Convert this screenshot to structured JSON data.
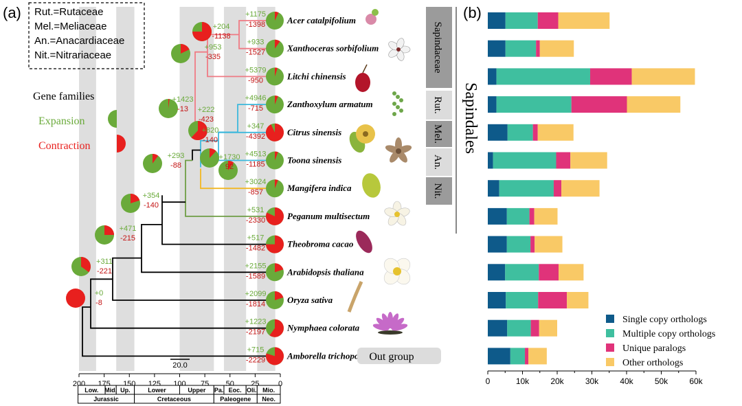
{
  "panel_a": {
    "label": "(a)",
    "abbrev": [
      "Rut.=Rutaceae",
      "Mel.=Meliaceae",
      "An.=Anacardiaceae",
      "Nit.=Nitrariaceae"
    ],
    "gene_families_title": "Gene families",
    "expansion_label": "Expansion",
    "contraction_label": "Contraction",
    "scale_bar_label": "20.0",
    "outgroup_label": "Out group",
    "colors": {
      "expansion": "#6aaa3a",
      "contraction": "#e8201e",
      "sapindaceae_branch": "#ef7b84",
      "rutaceae_branch": "#3db8dc",
      "anacardiaceae_branch": "#f2b724",
      "nitrariaceae_branch": "#6e9d45"
    },
    "species": [
      {
        "name": "Acer catalpifolium",
        "plus": "+1175",
        "minus": "-1398",
        "contraction_frac": 0.07,
        "icon": "acer-flower-icon"
      },
      {
        "name": "Xanthoceras sorbifolium",
        "plus": "+933",
        "minus": "-1527",
        "contraction_frac": 0.1,
        "icon": "xanthoceras-flower-icon"
      },
      {
        "name": "Litchi chinensis",
        "plus": "+5379",
        "minus": "-950",
        "contraction_frac": 0.05,
        "icon": "litchi-fruit-icon"
      },
      {
        "name": "Zanthoxylum armatum",
        "plus": "+4946",
        "minus": "-715",
        "contraction_frac": 0.06,
        "icon": "zanthoxylum-icon"
      },
      {
        "name": "Citrus sinensis",
        "plus": "+347",
        "minus": "-4392",
        "contraction_frac": 0.93,
        "icon": "citrus-fruit-icon"
      },
      {
        "name": "Toona sinensis",
        "plus": "+4513",
        "minus": "-1185",
        "contraction_frac": 0.06,
        "icon": "toona-capsule-icon"
      },
      {
        "name": "Mangifera indica",
        "plus": "+3024",
        "minus": "-857",
        "contraction_frac": 0.06,
        "icon": "mango-fruit-icon"
      },
      {
        "name": "Peganum multisectum",
        "plus": "+531",
        "minus": "-2330",
        "contraction_frac": 0.82,
        "icon": "peganum-flower-icon"
      },
      {
        "name": "Theobroma cacao",
        "plus": "+517",
        "minus": "-1482",
        "contraction_frac": 0.75,
        "icon": "cacao-pod-icon"
      },
      {
        "name": "Arabidopsis thaliana",
        "plus": "+2155",
        "minus": "-1589",
        "contraction_frac": 0.2,
        "icon": "arabidopsis-flower-icon"
      },
      {
        "name": "Oryza sativa",
        "plus": "+2099",
        "minus": "-1814",
        "contraction_frac": 0.2,
        "icon": "rice-panicle-icon"
      },
      {
        "name": "Nymphaea colorata",
        "plus": "+1223",
        "minus": "-2197",
        "contraction_frac": 0.6,
        "icon": "waterlily-icon"
      },
      {
        "name": "Amborella trichopoda",
        "plus": "+715",
        "minus": "-2229",
        "contraction_frac": 0.8,
        "icon": ""
      }
    ],
    "nodes": [
      {
        "plus": "+204",
        "minus": "-1138",
        "contraction_frac": 0.75
      },
      {
        "plus": "+953",
        "minus": "-335",
        "contraction_frac": 0.18
      },
      {
        "plus": "+1423",
        "minus": "-13",
        "contraction_frac": 0.02
      },
      {
        "plus": "+222",
        "minus": "-423",
        "contraction_frac": 0.62
      },
      {
        "plus": "+820",
        "minus": "-140",
        "contraction_frac": 0.12
      },
      {
        "plus": "+1730",
        "minus": "92",
        "contraction_frac": 0.1
      },
      {
        "plus": "+293",
        "minus": "-88",
        "contraction_frac": 0.1
      },
      {
        "plus": "+354",
        "minus": "-140",
        "contraction_frac": 0.2
      },
      {
        "plus": "+471",
        "minus": "-215",
        "contraction_frac": 0.25
      },
      {
        "plus": "+311",
        "minus": "-221",
        "contraction_frac": 0.35
      },
      {
        "plus": "+0",
        "minus": "-8",
        "contraction_frac": 1.0
      }
    ],
    "time_axis": {
      "ticks": [
        "200",
        "175",
        "150",
        "125",
        "100",
        "75",
        "50",
        "25",
        "0"
      ]
    },
    "periods": [
      "Low.",
      "Mid.",
      "Up.",
      "Lower",
      "Upper",
      "Pa.",
      "Eoc.",
      "Oli.",
      "Mio."
    ],
    "eras": [
      "Jurassic",
      "Cretaceous",
      "Paleogene",
      "Neo."
    ],
    "family_labels": [
      "Sapindaceae",
      "Rut.",
      "Mel.",
      "An.",
      "Nit."
    ],
    "order_label": "Sapindales"
  },
  "chart_data": {
    "type": "bar",
    "stacked": true,
    "orientation": "horizontal",
    "title": "(b)",
    "categories": [
      "Acer catalpifolium",
      "Xanthoceras sorbifolium",
      "Litchi chinensis",
      "Zanthoxylum armatum",
      "Citrus sinensis",
      "Toona sinensis",
      "Mangifera indica",
      "Peganum multisectum",
      "Theobroma cacao",
      "Arabidopsis thaliana",
      "Oryza sativa",
      "Nymphaea colorata",
      "Amborella trichopoda"
    ],
    "series": [
      {
        "name": "Single copy orthologs",
        "color": "#0e5a8a",
        "values": [
          5100,
          5100,
          2500,
          2500,
          5700,
          1500,
          3300,
          5500,
          5500,
          5000,
          5200,
          5600,
          6500
        ]
      },
      {
        "name": "Multiple copy orthologs",
        "color": "#3fbf9f",
        "values": [
          9300,
          8800,
          27000,
          21600,
          7300,
          18200,
          15700,
          6500,
          6800,
          9700,
          9300,
          6800,
          4200
        ]
      },
      {
        "name": "Unique paralogs",
        "color": "#e0337a",
        "values": [
          5900,
          1100,
          12000,
          16000,
          1400,
          4100,
          2200,
          1400,
          1200,
          5700,
          8300,
          2400,
          1000
        ]
      },
      {
        "name": "Other orthologs",
        "color": "#f9c966",
        "values": [
          14800,
          9800,
          18200,
          15400,
          10300,
          10600,
          11000,
          6700,
          8000,
          7200,
          6200,
          5200,
          5300
        ]
      }
    ],
    "xlim": [
      0,
      60000
    ],
    "xticks": [
      "0",
      "10k",
      "20k",
      "30k",
      "40k",
      "50k",
      "60k"
    ],
    "grid": false,
    "legend_position": "bottom-right"
  }
}
